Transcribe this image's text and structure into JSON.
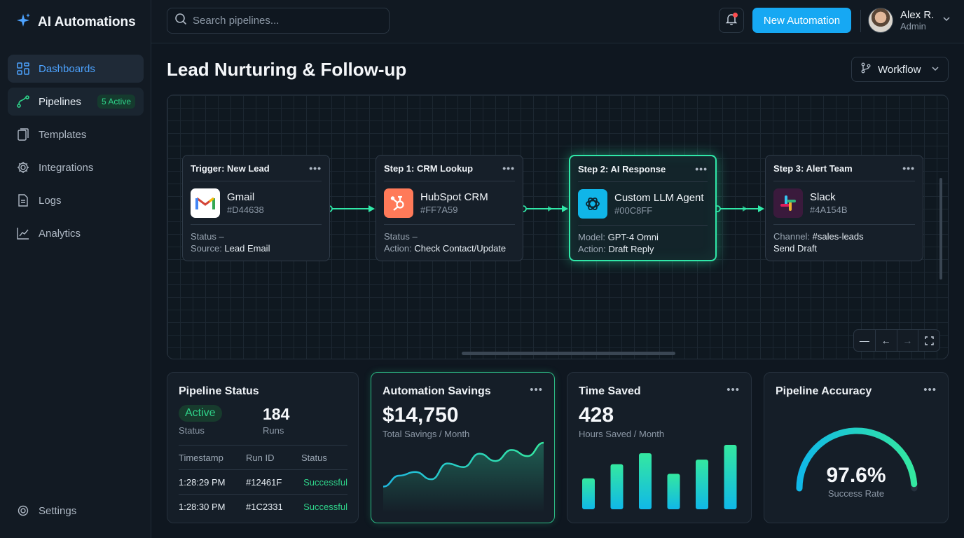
{
  "app": {
    "title": "AI Automations"
  },
  "nav": {
    "items": [
      {
        "label": "Dashboards",
        "icon": "grid-icon",
        "active": true
      },
      {
        "label": "Pipelines",
        "icon": "pipeline-icon",
        "badge": "5 Active"
      },
      {
        "label": "Templates",
        "icon": "templates-icon"
      },
      {
        "label": "Integrations",
        "icon": "gear-icon"
      },
      {
        "label": "Logs",
        "icon": "document-icon"
      },
      {
        "label": "Analytics",
        "icon": "chart-line-icon"
      }
    ],
    "settings_label": "Settings"
  },
  "topbar": {
    "search_placeholder": "Search pipelines...",
    "new_button_label": "New Automation",
    "user_name": "Alex R.",
    "user_role": "Admin",
    "has_notification": true
  },
  "page": {
    "title": "Lead Nurturing & Follow-up",
    "view_select": "Workflow"
  },
  "workflow": {
    "nodes": [
      {
        "title": "Trigger: New Lead",
        "app": "Gmail",
        "code": "#D44638",
        "icon": "gmail-icon",
        "line1_label": "Status –",
        "line1_value": "",
        "line2_label": "Source: ",
        "line2_value": "Lead Email"
      },
      {
        "title": "Step 1: CRM Lookup",
        "app": "HubSpot CRM",
        "code": "#FF7A59",
        "icon": "hubspot-icon",
        "line1_label": "Status –",
        "line1_value": "",
        "line2_label": "Action: ",
        "line2_value": "Check Contact/Update"
      },
      {
        "title": "Step 2: AI Response",
        "app": "Custom LLM Agent",
        "code": "#00C8FF",
        "icon": "openai-icon",
        "line1_label": "Model: ",
        "line1_value": "GPT-4 Omni",
        "line2_label": "Action: ",
        "line2_value": "Draft Reply",
        "highlighted": true
      },
      {
        "title": "Step 3: Alert Team",
        "app": "Slack",
        "code": "#4A154B",
        "icon": "slack-icon",
        "line1_label": "Channel: ",
        "line1_value": "#sales-leads",
        "line2_label": "",
        "line2_value": "Send Draft"
      }
    ],
    "accent_color": "#30e8a8"
  },
  "cards": {
    "pipeline_status": {
      "title": "Pipeline Status",
      "status_value": "Active",
      "status_label": "Status",
      "runs_value": "184",
      "runs_label": "Runs",
      "table_headers": [
        "Timestamp",
        "Run ID",
        "Status"
      ],
      "rows": [
        [
          "1:28:29 PM",
          "#12461F",
          "Successful"
        ],
        [
          "1:28:30 PM",
          "#1C2331",
          "Successful"
        ]
      ]
    },
    "savings": {
      "title": "Automation Savings",
      "value": "$14,750",
      "label": "Total Savings / Month",
      "sparkline": [
        20,
        38,
        44,
        32,
        58,
        52,
        74,
        62,
        80,
        70,
        92
      ]
    },
    "time_saved": {
      "title": "Time Saved",
      "value": "428",
      "label": "Hours Saved / Month",
      "bars": [
        0.48,
        0.7,
        0.87,
        0.55,
        0.77,
        1.0
      ]
    },
    "accuracy": {
      "title": "Pipeline Accuracy",
      "value": "97.6%",
      "label": "Success Rate",
      "percent": 97.6
    }
  }
}
